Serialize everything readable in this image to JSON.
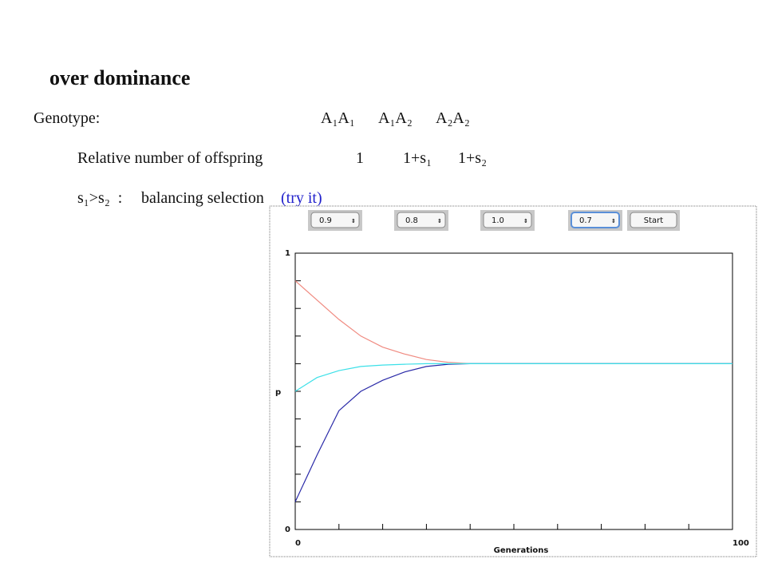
{
  "slide": {
    "title": "over dominance",
    "genotype_label": "Genotype:",
    "genotypes": [
      "A₁A₁",
      "A₁A₂",
      "A₂A₂"
    ],
    "offspring_label": "Relative number of offspring",
    "offspring": [
      "1",
      "1+s₁",
      "1+s₂"
    ],
    "condition": "s₁>s₂  :",
    "selection": "balancing selection",
    "link": "(try it)"
  },
  "controls": {
    "dropdowns": [
      "0.9",
      "0.8",
      "1.0",
      "0.7"
    ],
    "button": "Start"
  },
  "chart_data": {
    "type": "line",
    "xlabel": "Generations",
    "ylabel": "p",
    "x": [
      0,
      5,
      10,
      15,
      20,
      25,
      30,
      35,
      40,
      50,
      60,
      70,
      80,
      90,
      100
    ],
    "series": [
      {
        "color": "#f08a80",
        "values": [
          0.9,
          0.83,
          0.76,
          0.7,
          0.66,
          0.635,
          0.615,
          0.605,
          0.6,
          0.6,
          0.6,
          0.6,
          0.6,
          0.6,
          0.6
        ]
      },
      {
        "color": "#2a2aa8",
        "values": [
          0.1,
          0.27,
          0.43,
          0.5,
          0.54,
          0.57,
          0.59,
          0.598,
          0.6,
          0.6,
          0.6,
          0.6,
          0.6,
          0.6,
          0.6
        ]
      },
      {
        "color": "#3ce0e8",
        "values": [
          0.5,
          0.55,
          0.575,
          0.59,
          0.595,
          0.598,
          0.6,
          0.6,
          0.6,
          0.6,
          0.6,
          0.6,
          0.6,
          0.6,
          0.6
        ]
      }
    ],
    "xlim": [
      0,
      100
    ],
    "ylim": [
      0,
      1
    ],
    "xticks": [
      0,
      100
    ],
    "yticks": [
      0,
      1
    ],
    "x_minor_ticks": [
      10,
      20,
      30,
      40,
      50,
      60,
      70,
      80,
      90
    ],
    "y_minor_ticks": [
      0.1,
      0.2,
      0.3,
      0.4,
      0.5,
      0.6,
      0.7,
      0.8,
      0.9
    ]
  }
}
